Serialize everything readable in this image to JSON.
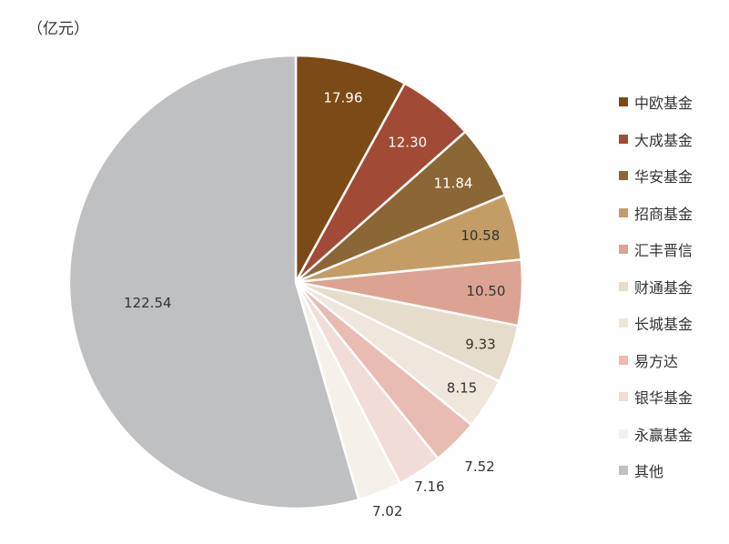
{
  "unit_label": "（亿元）",
  "chart_data": {
    "type": "pie",
    "title": "",
    "unit": "（亿元）",
    "legend_position": "right",
    "slices": [
      {
        "name": "中欧基金",
        "value": 17.96,
        "label": "17.96",
        "color": "#7b4a17"
      },
      {
        "name": "大成基金",
        "value": 12.3,
        "label": "12.30",
        "color": "#a14a35"
      },
      {
        "name": "华安基金",
        "value": 11.84,
        "label": "11.84",
        "color": "#8b6636"
      },
      {
        "name": "招商基金",
        "value": 10.58,
        "label": "10.58",
        "color": "#c49c66"
      },
      {
        "name": "汇丰晋信",
        "value": 10.5,
        "label": "10.50",
        "color": "#dca393"
      },
      {
        "name": "财通基金",
        "value": 9.33,
        "label": "9.33",
        "color": "#e6dccb"
      },
      {
        "name": "长城基金",
        "value": 8.15,
        "label": "8.15",
        "color": "#efe6dc"
      },
      {
        "name": "易方达",
        "value": 7.52,
        "label": "7.52",
        "color": "#e8bcb3"
      },
      {
        "name": "银华基金",
        "value": 7.16,
        "label": "7.16",
        "color": "#f2dcd8"
      },
      {
        "name": "永赢基金",
        "value": 7.02,
        "label": "7.02",
        "color": "#f5f1ea"
      },
      {
        "name": "其他",
        "value": 122.54,
        "label": "122.54",
        "color": "#bfc0c2"
      }
    ]
  }
}
